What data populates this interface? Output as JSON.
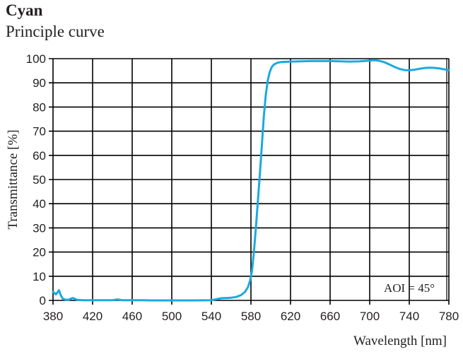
{
  "header": {
    "title": "Cyan",
    "subtitle": "Principle curve"
  },
  "colors": {
    "curve": "#1ba9e1",
    "grid": "#000000",
    "text": "#231f20"
  },
  "chart_data": {
    "type": "line",
    "title": "Cyan",
    "subtitle": "Principle curve",
    "xlabel": "Wavelength [nm]",
    "ylabel": "Transmittance [%]",
    "xlim": [
      380,
      780
    ],
    "ylim": [
      0,
      100
    ],
    "grid": true,
    "x_ticks": [
      380,
      420,
      460,
      500,
      540,
      580,
      620,
      660,
      700,
      740,
      780
    ],
    "y_ticks": [
      0,
      10,
      20,
      30,
      40,
      50,
      60,
      70,
      80,
      90,
      100
    ],
    "annotations": [
      "AOI = 45°"
    ],
    "series": [
      {
        "name": "Cyan",
        "x": [
          380,
          383,
          386,
          388,
          390,
          393,
          396,
          398,
          400,
          402,
          405,
          410,
          420,
          430,
          440,
          445,
          450,
          460,
          470,
          480,
          500,
          520,
          540,
          545,
          550,
          555,
          560,
          565,
          570,
          574,
          577,
          579,
          581,
          583,
          585,
          587,
          589,
          591,
          593,
          595,
          597,
          599,
          601,
          603,
          606,
          610,
          620,
          640,
          660,
          680,
          690,
          700,
          705,
          710,
          715,
          720,
          725,
          730,
          735,
          740,
          745,
          750,
          755,
          760,
          765,
          770,
          775,
          780
        ],
        "values": [
          3.5,
          2.5,
          4.2,
          2.0,
          0.6,
          0.3,
          0.3,
          0.7,
          1.0,
          0.6,
          0.2,
          0.1,
          0.1,
          0.1,
          0.1,
          0.4,
          0.1,
          0.1,
          0.1,
          0.0,
          0.0,
          0.0,
          0.1,
          0.5,
          0.9,
          1.0,
          1.1,
          1.4,
          2.2,
          3.5,
          5.5,
          8.0,
          12.0,
          20.0,
          30.0,
          41.0,
          52.0,
          64.0,
          76.0,
          85.0,
          91.0,
          94.5,
          96.5,
          97.5,
          98.2,
          98.6,
          98.8,
          99.0,
          99.0,
          98.8,
          98.9,
          99.2,
          99.4,
          99.1,
          98.5,
          97.6,
          96.6,
          95.8,
          95.3,
          95.2,
          95.4,
          95.8,
          96.1,
          96.3,
          96.2,
          96.0,
          95.6,
          95.3
        ]
      }
    ]
  }
}
